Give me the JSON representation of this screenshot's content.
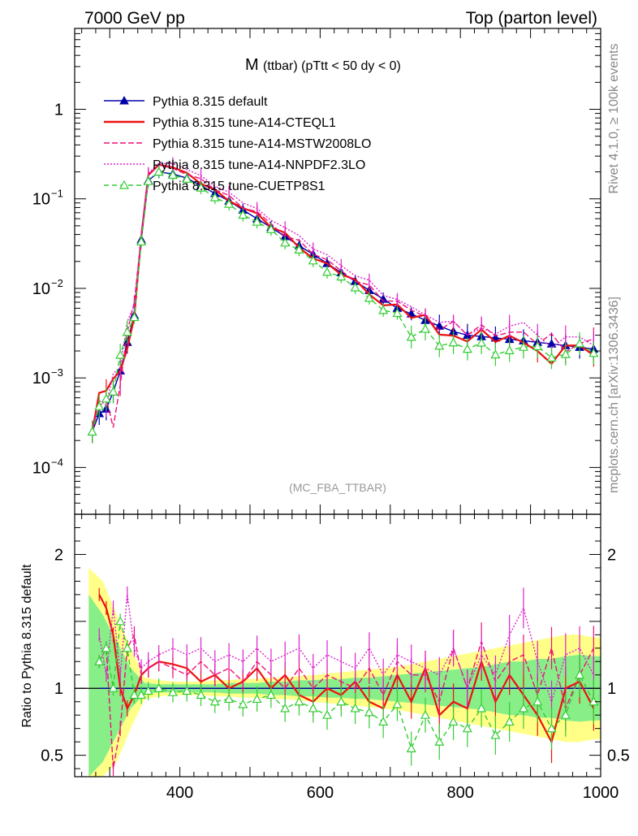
{
  "header": {
    "left": "7000 GeV pp",
    "right": "Top (parton level)"
  },
  "side_labels": {
    "rivet": "Rivet 4.1.0, ≥ 100k events",
    "mcplots": "mcplots.cern.ch [arXiv:1306.3436]"
  },
  "chart_data": {
    "type": "line",
    "title_main": "M",
    "title_sub": "(ttbar) (pTtt < 50 dy < 0)",
    "analysis_tag": "(MC_FBA_TTBAR)",
    "xlim": [
      250,
      1000
    ],
    "ylim_main": [
      3e-05,
      8
    ],
    "ylim_ratio": [
      0.34,
      2.3
    ],
    "ylabel_ratio": "Ratio to Pythia 8.315 default",
    "x_ticks": [
      400,
      600,
      800,
      1000
    ],
    "x_tick_labels": [
      "400",
      "600",
      "800",
      "1000"
    ],
    "y_ticks_main": [
      0.0001,
      0.001,
      0.01,
      0.1,
      1
    ],
    "y_tick_labels_main": [
      {
        "base": "10",
        "exp": "−4"
      },
      {
        "base": "10",
        "exp": "−3"
      },
      {
        "base": "10",
        "exp": "−2"
      },
      {
        "base": "10",
        "exp": "−1"
      },
      {
        "base": "1",
        "exp": ""
      }
    ],
    "y_ticks_ratio": [
      0.5,
      1,
      2
    ],
    "y_tick_labels_ratio": [
      "0.5",
      "1",
      "2"
    ],
    "reference_x": [
      275,
      285,
      295,
      305,
      315,
      325,
      335,
      345,
      355,
      370,
      390,
      410,
      430,
      450,
      470,
      490,
      510,
      530,
      550,
      570,
      590,
      610,
      630,
      650,
      670,
      690,
      710,
      730,
      750,
      770,
      790,
      810,
      830,
      850,
      870,
      890,
      910,
      930,
      950,
      970,
      990
    ],
    "reference_y": [
      0.00025,
      0.0004,
      0.00045,
      0.0007,
      0.0012,
      0.0025,
      0.005,
      0.035,
      0.16,
      0.2,
      0.19,
      0.17,
      0.14,
      0.115,
      0.095,
      0.075,
      0.06,
      0.048,
      0.038,
      0.03,
      0.024,
      0.019,
      0.015,
      0.012,
      0.0095,
      0.0076,
      0.006,
      0.0052,
      0.0044,
      0.0038,
      0.0033,
      0.003,
      0.0029,
      0.0028,
      0.0027,
      0.0026,
      0.0025,
      0.0024,
      0.0023,
      0.0022,
      0.0021
    ],
    "ratio_x": [
      285,
      295,
      305,
      315,
      325,
      335,
      345,
      355,
      370,
      390,
      410,
      430,
      450,
      470,
      490,
      510,
      530,
      550,
      570,
      590,
      610,
      630,
      650,
      670,
      690,
      710,
      730,
      750,
      770,
      790,
      810,
      830,
      850,
      870,
      890,
      910,
      930,
      950,
      970,
      990
    ],
    "series": [
      {
        "name": "Pythia 8.315 default",
        "color": "#0000aa",
        "dash": "",
        "marker": "triangle-filled",
        "ratio": [
          1,
          1,
          1,
          1,
          1,
          1,
          1,
          1,
          1,
          1,
          1,
          1,
          1,
          1,
          1,
          1,
          1,
          1,
          1,
          1,
          1,
          1,
          1,
          1,
          1,
          1,
          1,
          1,
          1,
          1,
          1,
          1,
          1,
          1,
          1,
          1,
          1,
          1,
          1,
          1
        ]
      },
      {
        "name": "Pythia 8.315 tune-A14-CTEQL1",
        "color": "#ee1111",
        "dash": "",
        "marker": "none",
        "ratio": [
          1.7,
          1.6,
          1.4,
          1.0,
          0.85,
          0.95,
          1.1,
          1.15,
          1.2,
          1.18,
          1.15,
          1.05,
          1.1,
          1.0,
          1.05,
          1.15,
          1.0,
          1.1,
          0.95,
          0.9,
          1.0,
          0.95,
          1.05,
          0.9,
          0.85,
          1.1,
          0.9,
          1.15,
          0.8,
          0.9,
          0.85,
          1.2,
          0.9,
          1.1,
          0.95,
          0.8,
          0.6,
          1.0,
          1.05,
          0.85
        ]
      },
      {
        "name": "Pythia 8.315 tune-A14-MSTW2008LO",
        "color": "#ee1177",
        "dash": "7,3",
        "marker": "none",
        "ratio": [
          1.2,
          1.3,
          0.4,
          0.7,
          1.3,
          1.4,
          1.1,
          1.15,
          1.2,
          1.15,
          1.1,
          1.2,
          1.1,
          1.15,
          1.05,
          1.2,
          1.1,
          1.0,
          1.15,
          1.0,
          1.1,
          1.05,
          1.0,
          1.15,
          0.95,
          1.2,
          1.1,
          1.1,
          0.9,
          1.3,
          1.0,
          1.35,
          1.05,
          1.2,
          1.25,
          0.95,
          1.3,
          0.85,
          1.1,
          1.3
        ]
      },
      {
        "name": "Pythia 8.315 tune-A14-NNPDF2.3LO",
        "color": "#dd22cc",
        "dash": "2,2",
        "marker": "none",
        "ratio": [
          1.4,
          1.1,
          1.6,
          1.1,
          1.7,
          1.3,
          1.15,
          1.2,
          1.25,
          1.3,
          1.25,
          1.3,
          1.2,
          1.25,
          1.2,
          1.3,
          1.2,
          1.25,
          1.3,
          1.15,
          1.25,
          1.2,
          1.15,
          1.3,
          1.1,
          1.25,
          1.2,
          1.15,
          1.1,
          1.3,
          1.0,
          1.25,
          1.1,
          1.4,
          1.6,
          1.2,
          0.9,
          1.25,
          1.3,
          1.1
        ]
      },
      {
        "name": "Pythia 8.315 tune-CUETP8S1",
        "color": "#33cc33",
        "dash": "6,4",
        "marker": "triangle-open",
        "ratio": [
          1.2,
          1.3,
          1.0,
          1.5,
          1.3,
          0.95,
          0.95,
          0.98,
          1.0,
          0.97,
          0.98,
          0.95,
          0.9,
          0.92,
          0.88,
          0.92,
          0.95,
          0.85,
          0.9,
          0.85,
          0.8,
          0.9,
          0.85,
          0.82,
          0.75,
          0.88,
          0.55,
          0.8,
          0.6,
          0.75,
          0.7,
          0.85,
          0.65,
          0.75,
          0.85,
          0.9,
          0.7,
          0.8,
          1.1,
          0.9
        ]
      }
    ],
    "band_x": [
      270,
      290,
      310,
      330,
      350,
      370,
      390,
      410,
      430,
      450,
      470,
      490,
      510,
      530,
      550,
      570,
      590,
      610,
      630,
      650,
      670,
      690,
      710,
      730,
      750,
      770,
      790,
      810,
      830,
      850,
      870,
      890,
      910,
      930,
      950,
      970,
      990,
      1000
    ],
    "band_yellow_half": [
      0.9,
      0.8,
      0.55,
      0.3,
      0.08,
      0.06,
      0.05,
      0.05,
      0.05,
      0.06,
      0.06,
      0.07,
      0.07,
      0.08,
      0.08,
      0.09,
      0.1,
      0.11,
      0.12,
      0.13,
      0.14,
      0.15,
      0.16,
      0.18,
      0.2,
      0.22,
      0.24,
      0.26,
      0.28,
      0.3,
      0.32,
      0.34,
      0.36,
      0.38,
      0.4,
      0.4,
      0.38,
      0.38
    ],
    "band_green_half": [
      0.7,
      0.55,
      0.35,
      0.15,
      0.04,
      0.03,
      0.03,
      0.03,
      0.03,
      0.03,
      0.04,
      0.04,
      0.04,
      0.05,
      0.05,
      0.06,
      0.06,
      0.07,
      0.07,
      0.08,
      0.08,
      0.09,
      0.1,
      0.11,
      0.12,
      0.13,
      0.14,
      0.15,
      0.16,
      0.18,
      0.2,
      0.2,
      0.22,
      0.22,
      0.24,
      0.25,
      0.24,
      0.24
    ]
  }
}
